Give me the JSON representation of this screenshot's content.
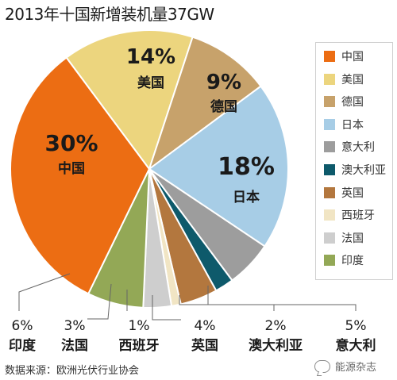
{
  "chart_data": {
    "type": "pie",
    "title": "2013年十国新增装机量37GW",
    "slices": [
      {
        "name": "中国",
        "value": 30,
        "label": "30%",
        "color": "#ec6d13"
      },
      {
        "name": "美国",
        "value": 14,
        "label": "14%",
        "color": "#ecd57e"
      },
      {
        "name": "德国",
        "value": 9,
        "label": "9%",
        "color": "#c7a26b"
      },
      {
        "name": "日本",
        "value": 18,
        "label": "18%",
        "color": "#a7cde6"
      },
      {
        "name": "意大利",
        "value": 5,
        "label": "5%",
        "color": "#9d9d9d"
      },
      {
        "name": "澳大利亚",
        "value": 2,
        "label": "2%",
        "color": "#0e5a6b"
      },
      {
        "name": "英国",
        "value": 4,
        "label": "4%",
        "color": "#b3773e"
      },
      {
        "name": "西班牙",
        "value": 1,
        "label": "1%",
        "color": "#f1e5c4"
      },
      {
        "name": "法国",
        "value": 3,
        "label": "3%",
        "color": "#cecece"
      },
      {
        "name": "印度",
        "value": 6,
        "label": "6%",
        "color": "#93a856"
      }
    ],
    "legend": [
      "中国",
      "美国",
      "德国",
      "日本",
      "意大利",
      "澳大利亚",
      "英国",
      "西班牙",
      "法国",
      "印度"
    ],
    "legend_position": "right"
  },
  "source": "数据来源：欧洲光伏行业协会",
  "watermark": "能源杂志"
}
